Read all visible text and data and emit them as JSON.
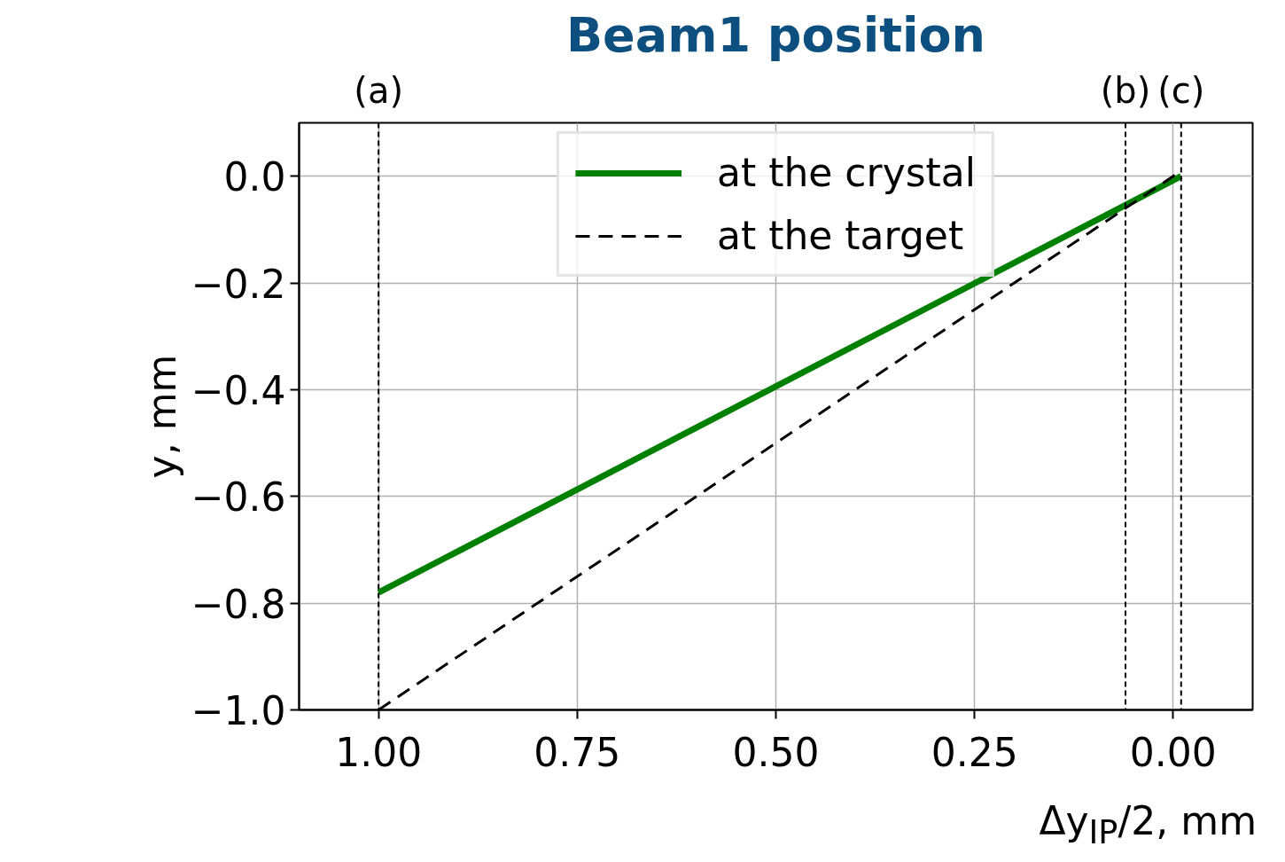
{
  "chart_data": {
    "type": "line",
    "title": "Beam1 position",
    "xlabel": "Δy$_{IP}$/2, mm",
    "ylabel": "y, mm",
    "series": [
      {
        "name": "at the crystal",
        "color": "#008000",
        "values": [
          -0.78,
          0.0
        ],
        "line_style": "solid"
      },
      {
        "name": "at the target",
        "color": "#000000",
        "values": [
          -1.0,
          0.01
        ],
        "line_style": "dashed"
      }
    ],
    "x": [
      1.0,
      -0.01
    ],
    "xlim": [
      1.1,
      -0.1
    ],
    "ylim": [
      -1.0,
      0.1
    ],
    "xticks": [
      {
        "value": 1.0,
        "label": "1.00"
      },
      {
        "value": 0.75,
        "label": "0.75"
      },
      {
        "value": 0.5,
        "label": "0.50"
      },
      {
        "value": 0.25,
        "label": "0.25"
      },
      {
        "value": 0.0,
        "label": "0.00"
      }
    ],
    "yticks": [
      {
        "value": 0.0,
        "label": "0.0"
      },
      {
        "value": -0.2,
        "label": "−0.2"
      },
      {
        "value": -0.4,
        "label": "−0.4"
      },
      {
        "value": -0.6,
        "label": "−0.6"
      },
      {
        "value": -0.8,
        "label": "−0.8"
      },
      {
        "value": -1.0,
        "label": "−1.0"
      }
    ],
    "ref_lines": [
      {
        "axis": "x",
        "value": 1.0,
        "label": "(a)",
        "color": "#000000",
        "line_style": "dashed"
      },
      {
        "axis": "x",
        "value": 0.06,
        "label": "(b)",
        "color": "#000000",
        "line_style": "dashed"
      },
      {
        "axis": "x",
        "value": -0.01,
        "label": "(c)",
        "color": "#000000",
        "line_style": "dashed"
      }
    ],
    "grid": true,
    "legend": "top",
    "marker": "none"
  }
}
